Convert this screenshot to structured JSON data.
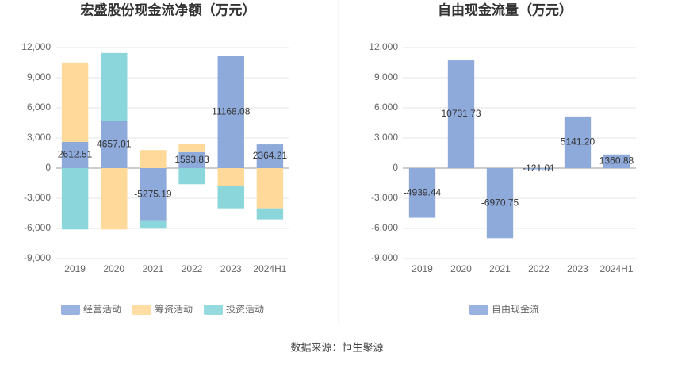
{
  "chart_data": [
    {
      "type": "bar",
      "stacked": true,
      "title": "宏盛股份现金流净额（万元）",
      "categories": [
        "2019",
        "2020",
        "2021",
        "2022",
        "2023",
        "2024H1"
      ],
      "series": [
        {
          "name": "经营活动",
          "color": "#8eaadb",
          "values": [
            2612.51,
            4657.01,
            -5275.19,
            1593.83,
            11168.08,
            2364.21
          ]
        },
        {
          "name": "筹资活动",
          "color": "#ffd99a",
          "values": [
            7900,
            -6100,
            1800,
            800,
            -1800,
            -4000
          ]
        },
        {
          "name": "投资活动",
          "color": "#8ad6da",
          "values": [
            -6100,
            6800,
            -750,
            -1600,
            -2200,
            -1100
          ]
        }
      ],
      "ylim": [
        -9000,
        12000
      ],
      "yticks": [
        {
          "value": -9000,
          "label": "-9,000"
        },
        {
          "value": -6000,
          "label": "-6,000"
        },
        {
          "value": -3000,
          "label": "-3,000"
        },
        0,
        {
          "value": 3000,
          "label": "3,000"
        },
        {
          "value": 6000,
          "label": "6,000"
        },
        {
          "value": 9000,
          "label": "9,000"
        },
        {
          "value": 12000,
          "label": "12,000"
        }
      ],
      "grid": true,
      "legend": "bottom"
    },
    {
      "type": "bar",
      "title": "自由现金流量（万元）",
      "categories": [
        "2019",
        "2020",
        "2021",
        "2022",
        "2023",
        "2024H1"
      ],
      "series": [
        {
          "name": "自由现金流",
          "color": "#8eaadb",
          "values": [
            -4939.44,
            10731.73,
            -6970.75,
            -121.01,
            5141.2,
            1360.88
          ],
          "value_labels": [
            "-4939.44",
            "10731.73",
            "-6970.75",
            "-121.01",
            "5141.20",
            "1360.88"
          ]
        }
      ],
      "ylim": [
        -9000,
        12000
      ],
      "yticks": [
        {
          "value": -9000,
          "label": "-9,000"
        },
        {
          "value": -6000,
          "label": "-6,000"
        },
        {
          "value": -3000,
          "label": "-3,000"
        },
        0,
        {
          "value": 3000,
          "label": "3,000"
        },
        {
          "value": 6000,
          "label": "6,000"
        },
        {
          "value": 9000,
          "label": "9,000"
        },
        {
          "value": 12000,
          "label": "12,000"
        }
      ],
      "grid": true,
      "legend": "bottom"
    }
  ],
  "source": "数据来源：恒生聚源"
}
